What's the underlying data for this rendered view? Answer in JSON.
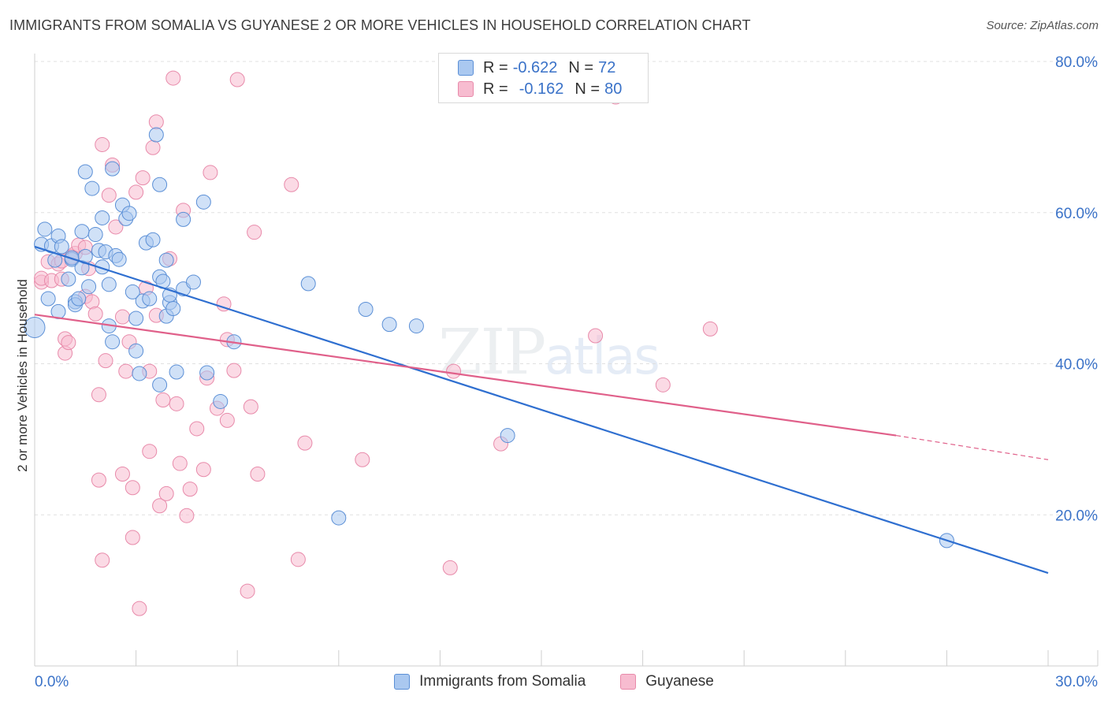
{
  "title": "IMMIGRANTS FROM SOMALIA VS GUYANESE 2 OR MORE VEHICLES IN HOUSEHOLD CORRELATION CHART",
  "source": "Source: ZipAtlas.com",
  "watermark": {
    "zip": "ZIP",
    "atlas": "atlas"
  },
  "legend": {
    "rows": [
      {
        "r_label": "R =",
        "r_value": "-0.622",
        "n_label": "N =",
        "n_value": "72"
      },
      {
        "r_label": "R =",
        "r_value": "-0.162",
        "n_label": "N =",
        "n_value": "80"
      }
    ]
  },
  "bottom_legend": [
    "Immigrants from Somalia",
    "Guyanese"
  ],
  "colors": {
    "somalia_fill": "#aac8f0",
    "somalia_stroke": "#5b8fd6",
    "somalia_line": "#2f6fd0",
    "guyanese_fill": "#f7bcd0",
    "guyanese_stroke": "#e88aaa",
    "guyanese_line": "#e0608a",
    "axis_text": "#3a72c8",
    "grid": "#e0e0e0"
  },
  "chart_data": {
    "type": "scatter",
    "xlabel": "",
    "ylabel": "2 or more Vehicles in Household",
    "xlim": [
      0,
      30
    ],
    "ylim": [
      0,
      80
    ],
    "x_ticks": [
      "0.0%",
      "30.0%"
    ],
    "y_ticks": [
      "20.0%",
      "40.0%",
      "60.0%",
      "80.0%"
    ],
    "grid": true,
    "series": [
      {
        "name": "Immigrants from Somalia",
        "trend": {
          "x": [
            0.0,
            30.0
          ],
          "y": [
            55.5,
            12.3
          ]
        },
        "points": [
          [
            0.0,
            44.8
          ],
          [
            0.2,
            55.8
          ],
          [
            0.3,
            57.8
          ],
          [
            0.4,
            48.6
          ],
          [
            0.5,
            55.6
          ],
          [
            0.6,
            53.7
          ],
          [
            0.7,
            56.9
          ],
          [
            0.7,
            46.9
          ],
          [
            0.8,
            55.5
          ],
          [
            1.0,
            51.2
          ],
          [
            1.1,
            53.8
          ],
          [
            1.1,
            54.0
          ],
          [
            1.2,
            48.2
          ],
          [
            1.2,
            47.8
          ],
          [
            1.3,
            48.6
          ],
          [
            1.4,
            57.5
          ],
          [
            1.4,
            52.7
          ],
          [
            1.5,
            54.2
          ],
          [
            1.5,
            65.4
          ],
          [
            1.6,
            50.2
          ],
          [
            1.7,
            63.2
          ],
          [
            1.8,
            57.1
          ],
          [
            1.9,
            55.0
          ],
          [
            2.0,
            52.8
          ],
          [
            2.0,
            59.3
          ],
          [
            2.1,
            54.8
          ],
          [
            2.2,
            45.0
          ],
          [
            2.2,
            50.5
          ],
          [
            2.3,
            42.9
          ],
          [
            2.3,
            65.8
          ],
          [
            2.4,
            54.3
          ],
          [
            2.5,
            53.8
          ],
          [
            2.6,
            61.0
          ],
          [
            2.7,
            59.2
          ],
          [
            2.8,
            59.9
          ],
          [
            2.9,
            49.5
          ],
          [
            3.0,
            46.0
          ],
          [
            3.0,
            41.7
          ],
          [
            3.1,
            38.7
          ],
          [
            3.2,
            48.3
          ],
          [
            3.3,
            56.0
          ],
          [
            3.4,
            48.6
          ],
          [
            3.5,
            56.4
          ],
          [
            3.6,
            70.3
          ],
          [
            3.7,
            51.5
          ],
          [
            3.7,
            37.2
          ],
          [
            3.7,
            63.7
          ],
          [
            3.8,
            50.9
          ],
          [
            3.9,
            46.3
          ],
          [
            3.9,
            53.7
          ],
          [
            4.0,
            48.1
          ],
          [
            4.0,
            49.1
          ],
          [
            4.1,
            47.3
          ],
          [
            4.2,
            38.9
          ],
          [
            4.4,
            59.1
          ],
          [
            4.4,
            49.9
          ],
          [
            4.7,
            50.8
          ],
          [
            5.0,
            61.4
          ],
          [
            5.1,
            38.8
          ],
          [
            5.5,
            35.0
          ],
          [
            5.9,
            42.9
          ],
          [
            8.1,
            50.6
          ],
          [
            9.0,
            19.6
          ],
          [
            9.8,
            47.2
          ],
          [
            10.5,
            45.2
          ],
          [
            11.3,
            45.0
          ],
          [
            14.0,
            30.5
          ],
          [
            27.0,
            16.6
          ]
        ]
      },
      {
        "name": "Guyanese",
        "trend": {
          "x": [
            0.0,
            25.5
          ],
          "y": [
            46.5,
            30.5
          ]
        },
        "trend_dashed": {
          "x": [
            25.5,
            30.0
          ],
          "y": [
            30.5,
            27.3
          ]
        },
        "points": [
          [
            0.2,
            50.8
          ],
          [
            0.2,
            51.3
          ],
          [
            0.4,
            53.5
          ],
          [
            0.5,
            51.0
          ],
          [
            0.7,
            53.2
          ],
          [
            0.8,
            53.6
          ],
          [
            0.8,
            51.2
          ],
          [
            0.9,
            43.3
          ],
          [
            0.9,
            41.4
          ],
          [
            1.0,
            42.8
          ],
          [
            1.1,
            54.2
          ],
          [
            1.2,
            54.6
          ],
          [
            1.3,
            55.7
          ],
          [
            1.5,
            48.9
          ],
          [
            1.5,
            55.4
          ],
          [
            1.6,
            52.6
          ],
          [
            1.7,
            48.2
          ],
          [
            1.8,
            46.6
          ],
          [
            1.9,
            35.9
          ],
          [
            1.9,
            24.6
          ],
          [
            2.0,
            14.0
          ],
          [
            2.0,
            69.0
          ],
          [
            2.1,
            40.4
          ],
          [
            2.2,
            62.3
          ],
          [
            2.3,
            66.3
          ],
          [
            2.4,
            58.1
          ],
          [
            2.6,
            46.2
          ],
          [
            2.6,
            25.4
          ],
          [
            2.7,
            39.0
          ],
          [
            2.8,
            42.9
          ],
          [
            2.9,
            23.6
          ],
          [
            2.9,
            17.0
          ],
          [
            3.0,
            62.7
          ],
          [
            3.1,
            7.6
          ],
          [
            3.2,
            64.6
          ],
          [
            3.3,
            50.0
          ],
          [
            3.4,
            39.0
          ],
          [
            3.4,
            28.4
          ],
          [
            3.5,
            68.6
          ],
          [
            3.6,
            72.0
          ],
          [
            3.6,
            46.4
          ],
          [
            3.7,
            21.2
          ],
          [
            3.8,
            35.2
          ],
          [
            3.9,
            22.8
          ],
          [
            4.0,
            53.9
          ],
          [
            4.1,
            77.8
          ],
          [
            4.2,
            34.7
          ],
          [
            4.3,
            26.8
          ],
          [
            4.4,
            60.3
          ],
          [
            4.5,
            19.9
          ],
          [
            4.6,
            23.4
          ],
          [
            4.8,
            31.4
          ],
          [
            5.0,
            26.0
          ],
          [
            5.1,
            38.1
          ],
          [
            5.2,
            65.3
          ],
          [
            5.4,
            34.1
          ],
          [
            5.6,
            47.9
          ],
          [
            5.7,
            43.2
          ],
          [
            5.7,
            32.5
          ],
          [
            5.9,
            39.1
          ],
          [
            6.0,
            77.6
          ],
          [
            6.3,
            9.9
          ],
          [
            6.4,
            34.3
          ],
          [
            6.5,
            57.4
          ],
          [
            6.6,
            25.4
          ],
          [
            7.6,
            63.7
          ],
          [
            7.8,
            14.1
          ],
          [
            8.0,
            29.5
          ],
          [
            9.7,
            27.3
          ],
          [
            12.3,
            13.0
          ],
          [
            12.4,
            39.0
          ],
          [
            13.8,
            29.4
          ],
          [
            16.6,
            43.7
          ],
          [
            17.2,
            75.3
          ],
          [
            18.6,
            37.2
          ],
          [
            20.0,
            44.6
          ]
        ]
      }
    ]
  }
}
